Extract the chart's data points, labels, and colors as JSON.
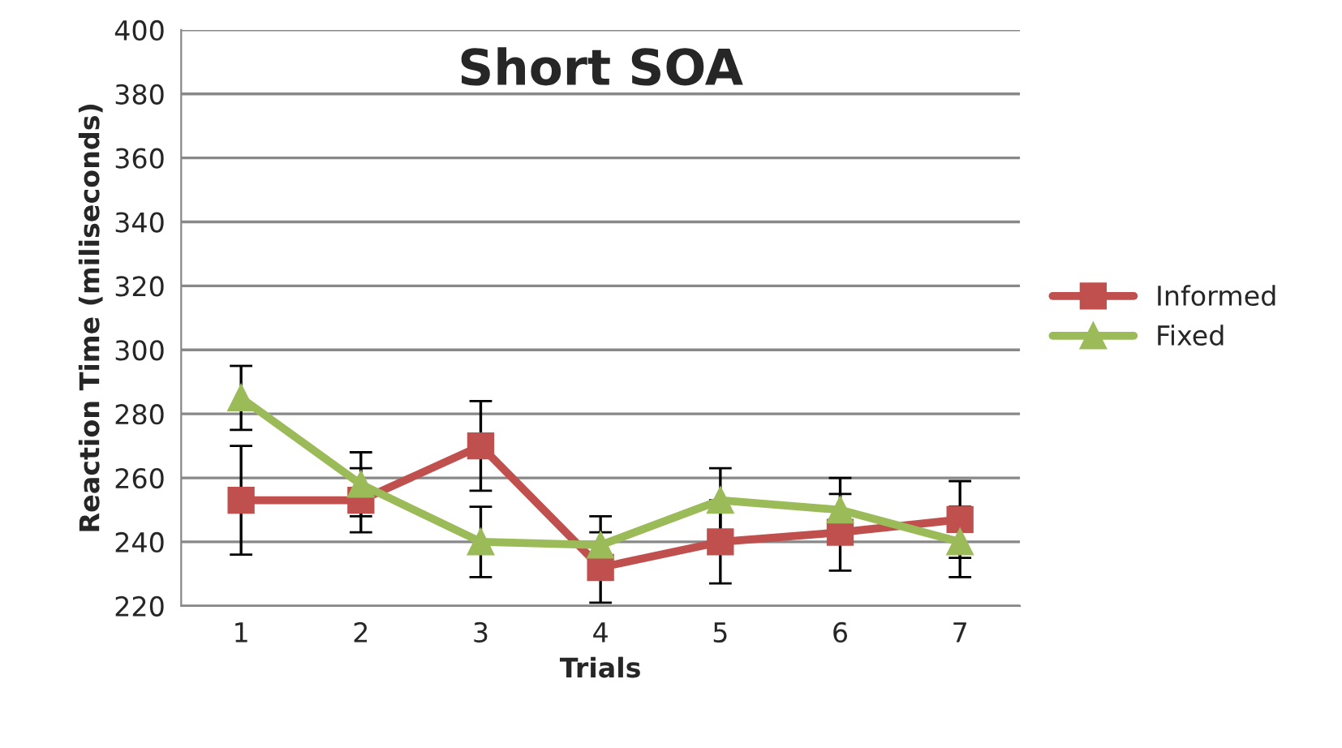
{
  "chart_data": {
    "type": "line",
    "title": "Short SOA",
    "xlabel": "Trials",
    "ylabel": "Reaction Time (miliseconds)",
    "categories": [
      "1",
      "2",
      "3",
      "4",
      "5",
      "6",
      "7"
    ],
    "series": [
      {
        "name": "Informed",
        "color": "#c0504d",
        "marker": "square",
        "values": [
          253,
          253,
          270,
          232,
          240,
          243,
          247
        ],
        "errors": [
          17,
          10,
          14,
          11,
          13,
          12,
          12
        ]
      },
      {
        "name": "Fixed",
        "color": "#9bbb59",
        "marker": "triangle",
        "values": [
          285,
          258,
          240,
          239,
          253,
          250,
          240
        ],
        "errors": [
          10,
          10,
          11,
          9,
          10,
          10,
          11
        ]
      }
    ],
    "ylim": [
      220,
      400
    ],
    "yticks": [
      220,
      240,
      260,
      280,
      300,
      320,
      340,
      360,
      380,
      400
    ],
    "grid": "y",
    "legend": "right",
    "line_style": "solid"
  }
}
